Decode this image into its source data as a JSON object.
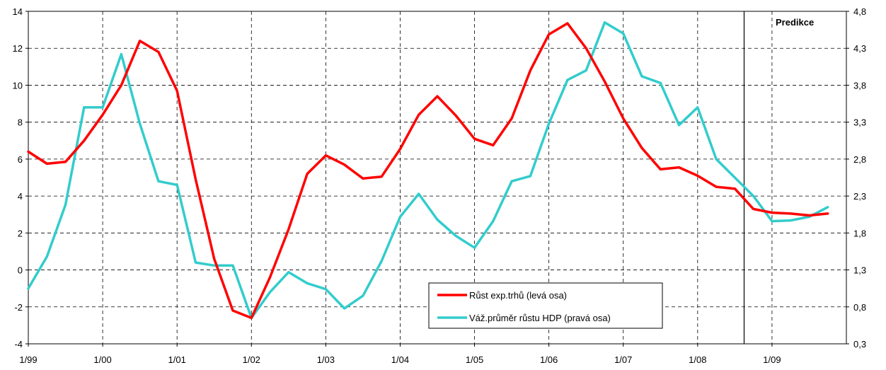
{
  "chart_data": {
    "type": "line",
    "x": [
      "1/99",
      "2/99",
      "3/99",
      "4/99",
      "1/00",
      "2/00",
      "3/00",
      "4/00",
      "1/01",
      "2/01",
      "3/01",
      "4/01",
      "1/02",
      "2/02",
      "3/02",
      "4/02",
      "1/03",
      "2/03",
      "3/03",
      "4/03",
      "1/04",
      "2/04",
      "3/04",
      "4/04",
      "1/05",
      "2/05",
      "3/05",
      "4/05",
      "1/06",
      "2/06",
      "3/06",
      "4/06",
      "1/07",
      "2/07",
      "3/07",
      "4/07",
      "1/08",
      "2/08",
      "3/08",
      "4/08",
      "1/09",
      "2/09",
      "3/09",
      "4/09"
    ],
    "xticks": [
      "1/99",
      "1/00",
      "1/01",
      "1/02",
      "1/03",
      "1/04",
      "1/05",
      "1/06",
      "1/07",
      "1/08",
      "1/09"
    ],
    "series": [
      {
        "name": "Růst exp.trhů (levá osa)",
        "axis": "left",
        "color": "#ff0000",
        "values": [
          6.4,
          5.75,
          5.85,
          7.0,
          8.4,
          10.0,
          12.4,
          11.8,
          9.7,
          4.9,
          0.6,
          -2.2,
          -2.6,
          -0.4,
          2.2,
          5.2,
          6.2,
          5.7,
          4.95,
          5.05,
          6.55,
          8.4,
          9.4,
          8.35,
          7.1,
          6.75,
          8.2,
          10.8,
          12.75,
          13.35,
          12.0,
          10.2,
          8.2,
          6.6,
          5.45,
          5.55,
          5.1,
          4.5,
          4.4,
          3.3,
          3.1,
          3.05,
          2.95,
          3.05
        ]
      },
      {
        "name": "Váž.průměr růstu HDP (pravá osa)",
        "axis": "right",
        "color": "#33cccc",
        "values": [
          1.05,
          1.48,
          2.18,
          3.5,
          3.5,
          4.22,
          3.28,
          2.5,
          2.45,
          1.4,
          1.36,
          1.36,
          0.65,
          1.0,
          1.27,
          1.12,
          1.04,
          0.78,
          0.95,
          1.42,
          2.02,
          2.33,
          1.98,
          1.76,
          1.6,
          1.96,
          2.5,
          2.57,
          3.28,
          3.87,
          4.0,
          4.65,
          4.5,
          3.92,
          3.83,
          3.26,
          3.5,
          2.8,
          2.55,
          2.3,
          1.96,
          1.97,
          2.02,
          2.15
        ]
      }
    ],
    "yleft": {
      "min": -4,
      "max": 14,
      "ticks": [
        "-4",
        "-2",
        "0",
        "2",
        "4",
        "6",
        "8",
        "10",
        "12",
        "14"
      ]
    },
    "yright": {
      "min": 0.3,
      "max": 4.8,
      "ticks": [
        "0,3",
        "0,8",
        "1,3",
        "1,8",
        "2,3",
        "2,8",
        "3,3",
        "3,8",
        "4,3",
        "4,8"
      ]
    },
    "annotation": "Predikce",
    "prediction_start": "3/08",
    "legend_placement": "bottom-center",
    "grid": true,
    "grid_style": "dashed"
  }
}
